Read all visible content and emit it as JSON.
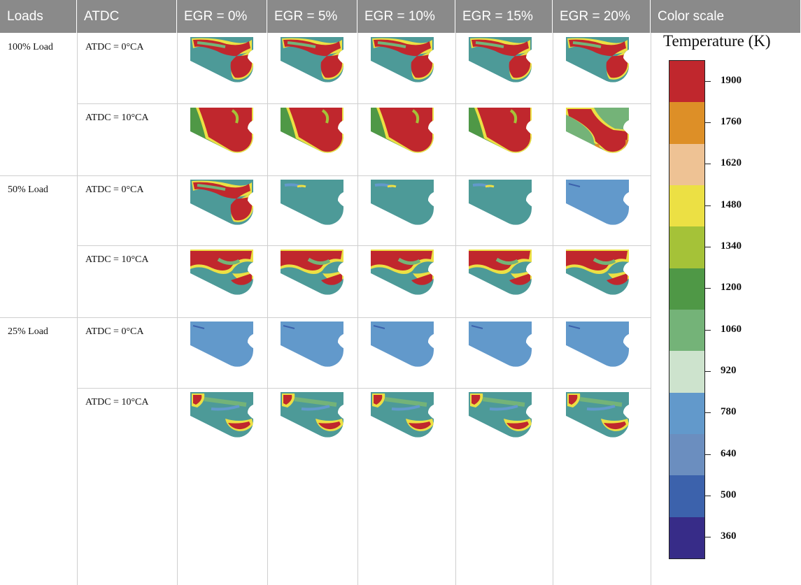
{
  "headers": [
    "Loads",
    "ATDC",
    "EGR = 0%",
    "EGR = 5%",
    "EGR = 10%",
    "EGR = 15%",
    "EGR = 20%",
    "Color scale"
  ],
  "rows": [
    {
      "load": "100% Load",
      "atdc": "ATDC = 0°CA"
    },
    {
      "load": "",
      "atdc": "ATDC = 10°CA"
    },
    {
      "load": "50% Load",
      "atdc": "ATDC = 0°CA"
    },
    {
      "load": "",
      "atdc": "ATDC = 10°CA"
    },
    {
      "load": "25% Load",
      "atdc": "ATDC = 0°CA"
    },
    {
      "load": "",
      "atdc": "ATDC = 10°CA"
    }
  ],
  "legend": {
    "title": "Temperature (K)",
    "labels": [
      "1900",
      "1760",
      "1620",
      "1480",
      "1340",
      "1200",
      "1060",
      "920",
      "780",
      "640",
      "500",
      "360"
    ],
    "colors": [
      "#c0272d",
      "#dd8f27",
      "#eec294",
      "#ece044",
      "#a5c238",
      "#4f9846",
      "#74b378",
      "#cde3cd",
      "#6299cb",
      "#6b8ebf",
      "#3c62ac",
      "#372c88"
    ]
  },
  "contour_styles": [
    [
      "hot",
      "hot",
      "hot",
      "hot",
      "hot"
    ],
    [
      "vhot",
      "vhot",
      "vhot",
      "vhot",
      "vhot2"
    ],
    [
      "hot",
      "cool",
      "cool",
      "cool",
      "cold"
    ],
    [
      "hot2",
      "hot2",
      "hot2",
      "hot2",
      "hot2"
    ],
    [
      "cold",
      "cold",
      "cold",
      "cold",
      "cold"
    ],
    [
      "warm",
      "warm",
      "warm",
      "warm",
      "warm"
    ]
  ]
}
